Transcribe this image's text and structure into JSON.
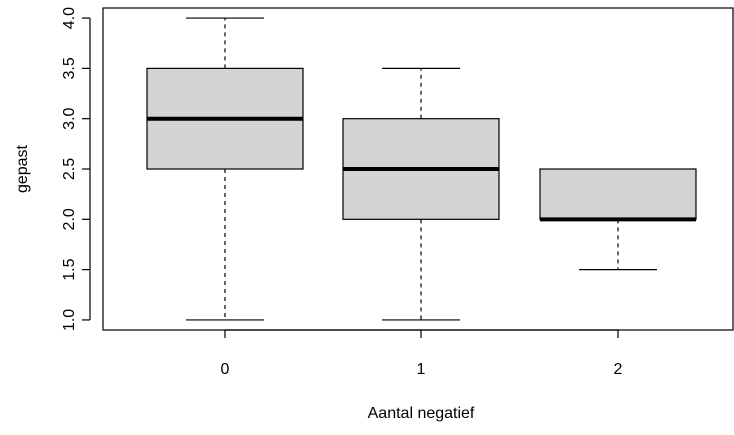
{
  "chart_data": {
    "type": "boxplot",
    "xlabel": "Aantal negatief",
    "ylabel": "gepast",
    "categories": [
      "0",
      "1",
      "2"
    ],
    "ylim": [
      0.9,
      4.1
    ],
    "y_ticks": [
      "1.0",
      "1.5",
      "2.0",
      "2.5",
      "3.0",
      "3.5",
      "4.0"
    ],
    "boxes": [
      {
        "category": "0",
        "whisker_low": 1.0,
        "q1": 2.5,
        "median": 3.0,
        "q3": 3.5,
        "whisker_high": 4.0
      },
      {
        "category": "1",
        "whisker_low": 1.0,
        "q1": 2.0,
        "median": 2.5,
        "q3": 3.0,
        "whisker_high": 3.5
      },
      {
        "category": "2",
        "whisker_low": 1.5,
        "q1": 2.0,
        "median": 2.0,
        "q3": 2.5,
        "whisker_high": 2.5
      }
    ],
    "box_fill": "#d3d3d3",
    "grid": false,
    "legend": "none"
  }
}
